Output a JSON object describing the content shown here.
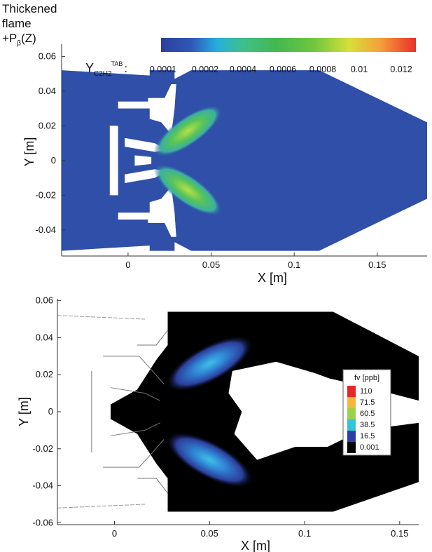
{
  "chart_data": [
    {
      "type": "heatmap",
      "panel": "top",
      "annotation": {
        "lines": [
          "Thickened",
          "flame"
        ],
        "formula_prefix": "+P",
        "formula_sub": "β",
        "formula_suffix": "(Z)"
      },
      "colorbar": {
        "variable_main": "Y",
        "variable_sub": "C2H2",
        "variable_sup": "TAB",
        "variable_colon": ":",
        "labels": [
          "0.0001",
          "0.0002",
          "0.0004",
          "0.0006",
          "0.0008",
          "0.01",
          "0.012"
        ],
        "colors": [
          "#2c3f9c",
          "#2f58b8",
          "#27aee0",
          "#3fbf72",
          "#43b83f",
          "#8fd03c",
          "#e6e13a",
          "#f5a03a",
          "#ea2e2a"
        ]
      },
      "xlabel": "X [m]",
      "ylabel": "Y [m]",
      "xlim": [
        -0.04,
        0.18
      ],
      "ylim": [
        -0.055,
        0.065
      ],
      "xticks": [
        0,
        0.05,
        0.1,
        0.15
      ],
      "xtick_labels": [
        "0",
        "0.05",
        "0.1",
        "0.15"
      ],
      "yticks": [
        0.06,
        0.04,
        0.02,
        0,
        -0.02,
        -0.04
      ],
      "ytick_labels": [
        "0.06",
        "0.04",
        "0.02",
        "0",
        "-0.02",
        "-0.04"
      ],
      "domain_color": "#2f4fa8",
      "field_color": "#4fc25a",
      "hot_color": "#a8d94a"
    },
    {
      "type": "heatmap",
      "panel": "bottom",
      "xlabel": "X [m]",
      "ylabel": "Y [m]",
      "xlim": [
        -0.03,
        0.16
      ],
      "ylim": [
        -0.061,
        0.061
      ],
      "xticks": [
        0,
        0.05,
        0.1,
        0.15
      ],
      "xtick_labels": [
        "0",
        "0.05",
        "0.1",
        "0.15"
      ],
      "yticks": [
        0.06,
        0.04,
        0.02,
        0,
        -0.02,
        -0.04,
        -0.06
      ],
      "ytick_labels": [
        "0.06",
        "0.04",
        "0.02",
        "0",
        "-0.02",
        "-0.04",
        "-0.06"
      ],
      "legend": {
        "title": "fv [ppb]",
        "labels": [
          "110",
          "71.5",
          "60.5",
          "38.5",
          "16.5",
          "0.001"
        ],
        "colors": [
          "#e8262a",
          "#f5b935",
          "#98d447",
          "#2ec7d8",
          "#2d3fa6",
          "#000000"
        ]
      },
      "domain_color": "#000000",
      "field_color": "#2f6fc8",
      "hot_color": "#3ab8e6"
    }
  ]
}
